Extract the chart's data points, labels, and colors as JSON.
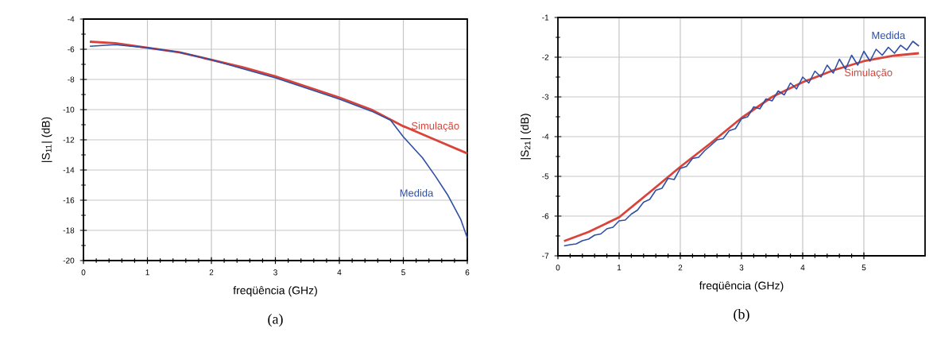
{
  "chart_data": [
    {
      "type": "line",
      "xlabel": "freqüência (GHz)",
      "ylabel": "|S$_{11}$| (dB)",
      "xlim": [
        0,
        6
      ],
      "ylim": [
        -20,
        -4
      ],
      "xticks": [
        0,
        1,
        2,
        3,
        4,
        5,
        6
      ],
      "yticks": [
        -20,
        -18,
        -16,
        -14,
        -12,
        -10,
        -8,
        -6,
        -4
      ],
      "grid": true,
      "annotations": [
        "(a)"
      ],
      "series": [
        {
          "name": "Simulação",
          "color": "#d9433a",
          "x": [
            0.1,
            0.5,
            1,
            1.5,
            2,
            2.5,
            3,
            3.5,
            4,
            4.5,
            5,
            5.5,
            6
          ],
          "values": [
            -5.5,
            -5.6,
            -5.9,
            -6.2,
            -6.7,
            -7.2,
            -7.8,
            -8.5,
            -9.2,
            -10.0,
            -11.1,
            -12.0,
            -12.9
          ]
        },
        {
          "name": "Medida",
          "color": "#2e4fa3",
          "x": [
            0.1,
            0.5,
            1,
            1.5,
            2,
            2.5,
            3,
            3.5,
            4,
            4.5,
            4.8,
            5,
            5.3,
            5.5,
            5.7,
            5.9,
            6
          ],
          "values": [
            -5.8,
            -5.7,
            -5.9,
            -6.2,
            -6.7,
            -7.3,
            -7.9,
            -8.6,
            -9.3,
            -10.1,
            -10.7,
            -11.8,
            -13.2,
            -14.4,
            -15.7,
            -17.3,
            -18.5
          ]
        }
      ]
    },
    {
      "type": "line",
      "xlabel": "freqüência (GHz)",
      "ylabel": "|S$_{21}$| (dB)",
      "xlim": [
        0,
        6
      ],
      "ylim": [
        -7,
        -1
      ],
      "xticks": [
        0,
        1,
        2,
        3,
        4,
        5
      ],
      "yticks": [
        -7,
        -6,
        -5,
        -4,
        -3,
        -2,
        -1
      ],
      "grid": true,
      "annotations": [
        "(b)"
      ],
      "series": [
        {
          "name": "Simulação",
          "color": "#d9433a",
          "x": [
            0.1,
            0.5,
            1,
            1.5,
            2,
            2.5,
            3,
            3.5,
            4,
            4.5,
            5,
            5.5,
            5.9
          ],
          "values": [
            -6.63,
            -6.4,
            -6.03,
            -5.4,
            -4.76,
            -4.16,
            -3.53,
            -3.0,
            -2.63,
            -2.33,
            -2.1,
            -1.96,
            -1.9
          ]
        },
        {
          "name": "Medida",
          "color": "#2e4fa3",
          "x": [
            0.1,
            0.2,
            0.3,
            0.4,
            0.5,
            0.6,
            0.7,
            0.8,
            0.9,
            1.0,
            1.1,
            1.2,
            1.3,
            1.4,
            1.5,
            1.6,
            1.7,
            1.8,
            1.9,
            2.0,
            2.1,
            2.2,
            2.3,
            2.4,
            2.5,
            2.6,
            2.7,
            2.8,
            2.9,
            3.0,
            3.1,
            3.2,
            3.3,
            3.4,
            3.5,
            3.6,
            3.7,
            3.8,
            3.9,
            4.0,
            4.1,
            4.2,
            4.3,
            4.4,
            4.5,
            4.6,
            4.7,
            4.8,
            4.9,
            5.0,
            5.1,
            5.2,
            5.3,
            5.4,
            5.5,
            5.6,
            5.7,
            5.8,
            5.9
          ],
          "values": [
            -6.75,
            -6.72,
            -6.7,
            -6.62,
            -6.58,
            -6.48,
            -6.45,
            -6.32,
            -6.28,
            -6.12,
            -6.1,
            -5.95,
            -5.85,
            -5.65,
            -5.58,
            -5.35,
            -5.3,
            -5.05,
            -5.08,
            -4.8,
            -4.75,
            -4.55,
            -4.52,
            -4.35,
            -4.22,
            -4.08,
            -4.05,
            -3.85,
            -3.8,
            -3.55,
            -3.5,
            -3.25,
            -3.3,
            -3.05,
            -3.1,
            -2.85,
            -2.95,
            -2.65,
            -2.8,
            -2.5,
            -2.65,
            -2.35,
            -2.5,
            -2.2,
            -2.4,
            -2.05,
            -2.3,
            -1.95,
            -2.2,
            -1.85,
            -2.1,
            -1.8,
            -1.95,
            -1.75,
            -1.9,
            -1.7,
            -1.82,
            -1.6,
            -1.72
          ]
        }
      ]
    }
  ]
}
